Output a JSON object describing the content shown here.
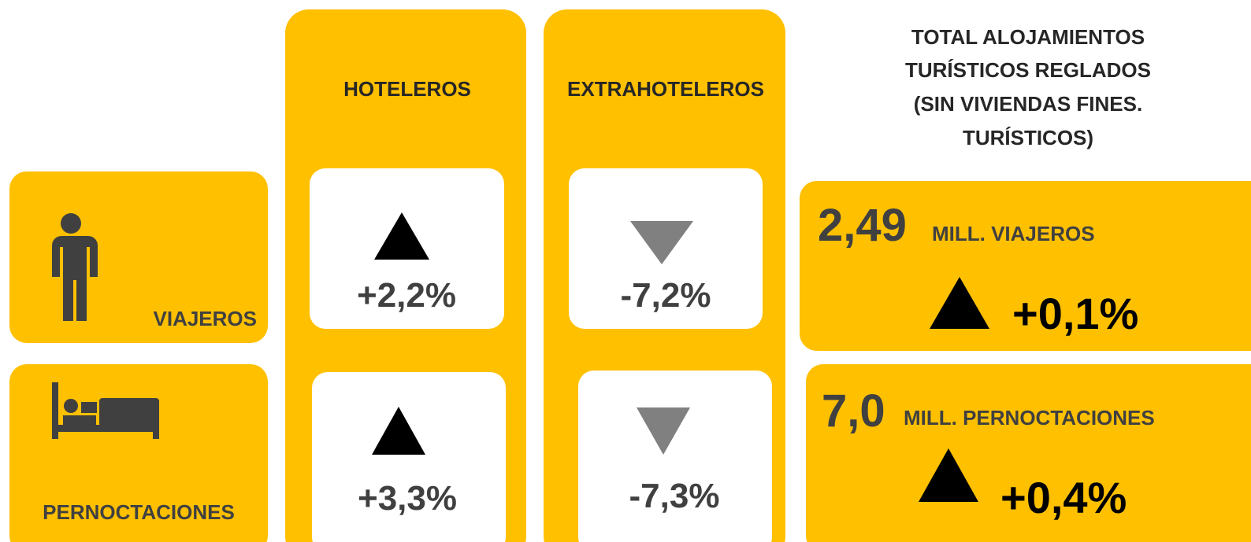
{
  "columns": {
    "hoteleros": "HOTELEROS",
    "extrahoteleros": "EXTRAHOTELEROS"
  },
  "total_title": [
    "TOTAL ALOJAMIENTOS",
    "TURÍSTICOS REGLADOS",
    "(SIN VIVIENDAS FINES.",
    "TURÍSTICOS)"
  ],
  "rows": [
    {
      "label": "VIAJEROS",
      "hoteleros": "+2,2%",
      "extrahoteleros": "-7,2%",
      "total_value": "2,49",
      "total_unit": "MILL. VIAJEROS",
      "total_change": "+0,1%"
    },
    {
      "label": "PERNOCTACIONES",
      "hoteleros": "+3,3%",
      "extrahoteleros": "-7,3%",
      "total_value": "7,0",
      "total_unit": "MILL. PERNOCTACIONES",
      "total_change": "+0,4%"
    }
  ]
}
